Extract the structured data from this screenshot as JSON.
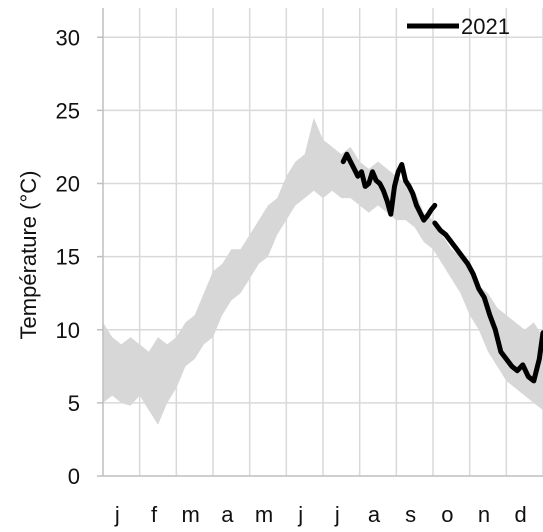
{
  "chart_data": {
    "type": "line",
    "title": "",
    "xlabel": "",
    "ylabel": "Température (°C)",
    "ylim": [
      0,
      32
    ],
    "yticks": [
      0,
      5,
      10,
      15,
      20,
      25,
      30
    ],
    "xlim": [
      0,
      12
    ],
    "month_labels": [
      "j",
      "f",
      "m",
      "a",
      "m",
      "j",
      "j",
      "a",
      "s",
      "o",
      "n",
      "d"
    ],
    "grid": {
      "vertical": true,
      "horizontal": true
    },
    "legend": {
      "position": "top-right",
      "entries": [
        "2021"
      ]
    },
    "colors": {
      "band": "#d7d7d7",
      "series": "#000000",
      "grid": "#d9d9d9",
      "axis": "#bfbfbf"
    },
    "band": {
      "name": "",
      "x": [
        0.0,
        0.25,
        0.5,
        0.75,
        1.0,
        1.25,
        1.5,
        1.75,
        2.0,
        2.25,
        2.5,
        2.75,
        3.0,
        3.25,
        3.5,
        3.75,
        4.0,
        4.25,
        4.5,
        4.75,
        5.0,
        5.25,
        5.5,
        5.75,
        6.0,
        6.25,
        6.5,
        6.75,
        7.0,
        7.25,
        7.5,
        7.75,
        8.0,
        8.25,
        8.5,
        8.75,
        9.0,
        9.25,
        9.5,
        9.75,
        10.0,
        10.25,
        10.5,
        10.75,
        11.0,
        11.25,
        11.5,
        11.75,
        12.0
      ],
      "lower": [
        5.0,
        5.5,
        5.0,
        4.8,
        5.5,
        4.5,
        3.5,
        5.0,
        6.0,
        7.5,
        8.0,
        9.0,
        9.5,
        11.0,
        12.0,
        12.5,
        13.5,
        14.5,
        15.0,
        16.5,
        17.5,
        18.5,
        19.0,
        19.5,
        19.0,
        19.5,
        19.0,
        19.0,
        18.5,
        18.0,
        18.5,
        18.0,
        17.5,
        17.5,
        17.0,
        16.0,
        15.5,
        14.5,
        13.5,
        12.5,
        11.0,
        10.0,
        8.5,
        7.5,
        6.5,
        6.0,
        5.5,
        5.0,
        4.5
      ],
      "upper": [
        10.5,
        9.5,
        9.0,
        9.5,
        9.0,
        8.5,
        9.5,
        9.0,
        9.5,
        10.5,
        11.0,
        12.5,
        14.0,
        14.5,
        15.5,
        15.5,
        16.5,
        17.5,
        18.5,
        19.0,
        20.5,
        21.5,
        22.0,
        24.5,
        23.0,
        22.5,
        22.0,
        22.5,
        21.5,
        21.0,
        21.5,
        21.0,
        20.5,
        20.0,
        19.5,
        18.0,
        17.5,
        16.5,
        15.5,
        15.0,
        14.0,
        13.0,
        12.5,
        11.5,
        11.0,
        10.5,
        10.0,
        10.5,
        9.5
      ]
    },
    "series": [
      {
        "name": "2021",
        "segments": [
          {
            "x": [
              6.55,
              6.65,
              6.75,
              6.85,
              6.95,
              7.05,
              7.15,
              7.25,
              7.35,
              7.45,
              7.55,
              7.65,
              7.75,
              7.85,
              7.95,
              8.05,
              8.15,
              8.25,
              8.35,
              8.45,
              8.55,
              8.65,
              8.75,
              8.85,
              8.95,
              9.05
            ],
            "y": [
              21.5,
              22.0,
              21.5,
              21.0,
              20.5,
              20.8,
              19.8,
              20.0,
              20.8,
              20.2,
              20.0,
              19.5,
              18.8,
              17.9,
              19.8,
              20.8,
              21.3,
              20.2,
              19.8,
              19.3,
              18.5,
              18.0,
              17.5,
              17.8,
              18.2,
              18.5
            ]
          },
          {
            "x": [
              9.05,
              9.2,
              9.35,
              9.5,
              9.65,
              9.8,
              9.95,
              10.1,
              10.25,
              10.4,
              10.55,
              10.7,
              10.85,
              11.0,
              11.15,
              11.3,
              11.45,
              11.6,
              11.75,
              11.9,
              12.0
            ],
            "y": [
              17.3,
              16.8,
              16.5,
              16.0,
              15.5,
              15.0,
              14.5,
              13.8,
              12.8,
              12.2,
              11.0,
              10.0,
              8.5,
              8.0,
              7.5,
              7.2,
              7.6,
              6.8,
              6.5,
              8.0,
              9.8
            ]
          }
        ]
      }
    ]
  }
}
